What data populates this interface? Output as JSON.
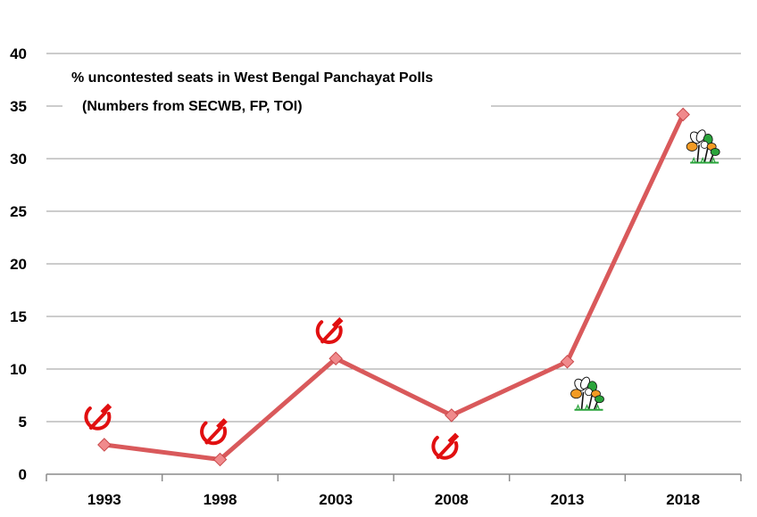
{
  "chart_data": {
    "type": "line",
    "title": "% uncontested seats in West Bengal Panchayat Polls",
    "subtitle": "(Numbers from SECWB, FP, TOI)",
    "categories": [
      "1993",
      "1998",
      "2003",
      "2008",
      "2013",
      "2018"
    ],
    "series": [
      {
        "values": [
          2.8,
          1.4,
          11.0,
          5.6,
          10.7,
          34.2
        ]
      }
    ],
    "ylim": [
      0,
      40
    ],
    "yticks": [
      0,
      5,
      10,
      15,
      20,
      25,
      30,
      35,
      40
    ],
    "grid": true,
    "line_color": "#d9595b",
    "marker_color": "#f08a8c",
    "annotations": [
      {
        "symbol": "hammer-sickle-icon",
        "category": "1993",
        "placement": "above"
      },
      {
        "symbol": "hammer-sickle-icon",
        "category": "1998",
        "placement": "above"
      },
      {
        "symbol": "hammer-sickle-icon",
        "category": "2003",
        "placement": "above"
      },
      {
        "symbol": "hammer-sickle-icon",
        "category": "2008",
        "placement": "below"
      },
      {
        "symbol": "twin-flowers-icon",
        "category": "2013",
        "placement": "below"
      },
      {
        "symbol": "twin-flowers-icon",
        "category": "2018",
        "placement": "below"
      }
    ]
  }
}
